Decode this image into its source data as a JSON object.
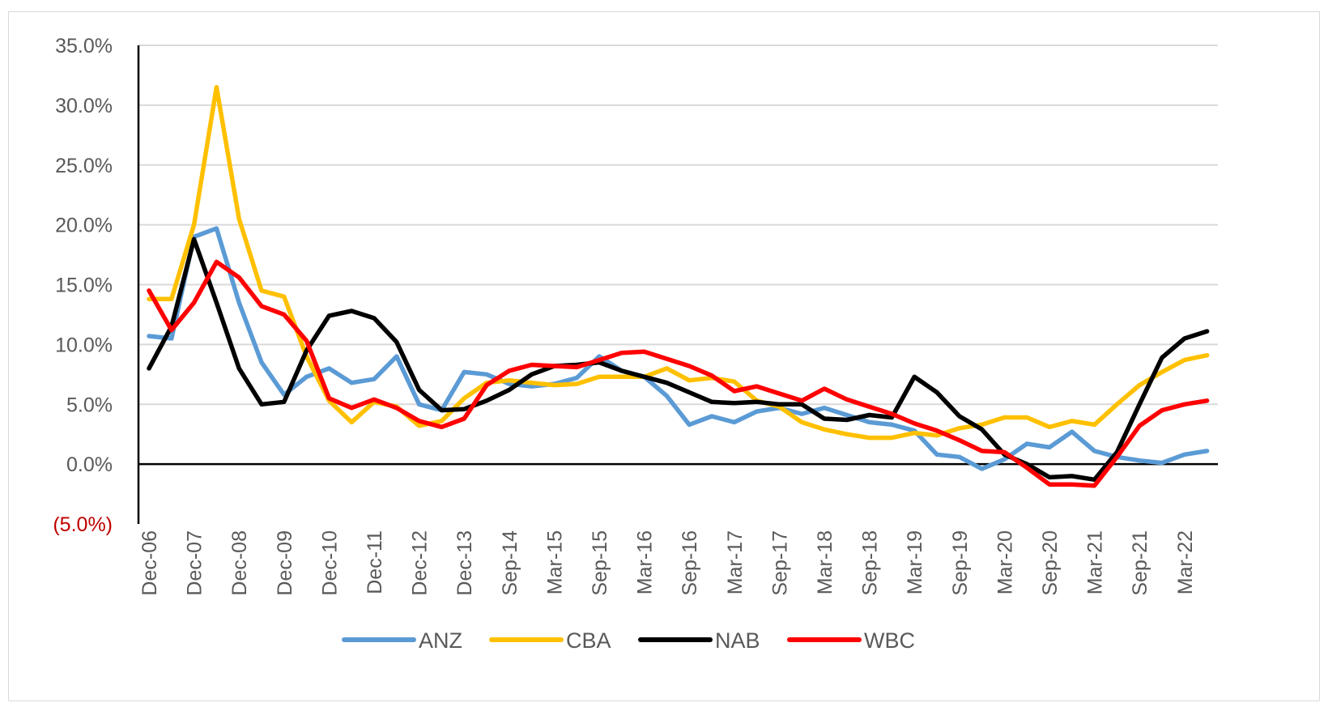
{
  "chart_data": {
    "type": "line",
    "title": "",
    "xlabel": "",
    "ylabel": "",
    "ylim": [
      -5,
      35
    ],
    "yticks": [
      35,
      30,
      25,
      20,
      15,
      10,
      5,
      0,
      -5
    ],
    "ytick_labels": [
      "35.0%",
      "30.0%",
      "25.0%",
      "20.0%",
      "15.0%",
      "10.0%",
      "5.0%",
      "0.0%",
      "(5.0%)"
    ],
    "grid": true,
    "legend_position": "bottom",
    "x": [
      "Dec-06",
      "Jun-07",
      "Dec-07",
      "Jun-08",
      "Dec-08",
      "Jun-09",
      "Dec-09",
      "Jun-10",
      "Dec-10",
      "Jun-11",
      "Dec-11",
      "Jun-12",
      "Dec-12",
      "Jun-13",
      "Dec-13",
      "Mar-14",
      "Sep-14",
      "Dec-14",
      "Mar-15",
      "Jun-15",
      "Sep-15",
      "Dec-15",
      "Mar-16",
      "Jun-16",
      "Sep-16",
      "Dec-16",
      "Mar-17",
      "Jun-17",
      "Sep-17",
      "Dec-17",
      "Mar-18",
      "Jun-18",
      "Sep-18",
      "Dec-18",
      "Mar-19",
      "Jun-19",
      "Sep-19",
      "Dec-19",
      "Mar-20",
      "Jun-20",
      "Sep-20",
      "Dec-20",
      "Mar-21",
      "Jun-21",
      "Sep-21",
      "Dec-21",
      "Mar-22",
      "Jun-22"
    ],
    "x_tick_labels": [
      "Dec-06",
      "Dec-07",
      "Dec-08",
      "Dec-09",
      "Dec-10",
      "Dec-11",
      "Dec-12",
      "Dec-13",
      "Sep-14",
      "Mar-15",
      "Sep-15",
      "Mar-16",
      "Sep-16",
      "Mar-17",
      "Sep-17",
      "Mar-18",
      "Sep-18",
      "Mar-19",
      "Sep-19",
      "Mar-20",
      "Sep-20",
      "Mar-21",
      "Sep-21",
      "Mar-22"
    ],
    "series": [
      {
        "name": "ANZ",
        "color": "#5b9bd5",
        "values": [
          10.7,
          10.5,
          19.0,
          19.7,
          13.5,
          8.5,
          5.8,
          7.3,
          8.0,
          6.8,
          7.1,
          9.0,
          5.0,
          4.5,
          7.7,
          7.5,
          6.7,
          6.5,
          6.7,
          7.2,
          9.0,
          7.8,
          7.3,
          5.7,
          3.3,
          4.0,
          3.5,
          4.4,
          4.7,
          4.2,
          4.7,
          4.1,
          3.5,
          3.3,
          2.8,
          0.8,
          0.6,
          -0.4,
          0.4,
          1.7,
          1.4,
          2.7,
          1.1,
          0.6,
          0.3,
          0.1,
          0.8,
          1.1
        ]
      },
      {
        "name": "CBA",
        "color": "#ffc000",
        "values": [
          13.8,
          13.8,
          20.0,
          31.5,
          20.5,
          14.5,
          14.0,
          9.0,
          5.3,
          3.5,
          5.2,
          4.8,
          3.2,
          3.6,
          5.5,
          6.8,
          7.0,
          6.8,
          6.6,
          6.7,
          7.3,
          7.3,
          7.3,
          8.0,
          7.0,
          7.2,
          6.9,
          5.3,
          4.8,
          3.5,
          2.9,
          2.5,
          2.2,
          2.2,
          2.6,
          2.4,
          3.0,
          3.3,
          3.9,
          3.9,
          3.1,
          3.6,
          3.3,
          5.0,
          6.6,
          7.7,
          8.7,
          9.1
        ]
      },
      {
        "name": "NAB",
        "color": "#000000",
        "values": [
          8.0,
          11.5,
          18.8,
          13.5,
          8.0,
          5.0,
          5.2,
          9.5,
          12.4,
          12.8,
          12.2,
          10.2,
          6.2,
          4.5,
          4.6,
          5.3,
          6.2,
          7.5,
          8.2,
          8.3,
          8.5,
          7.8,
          7.3,
          6.8,
          6.0,
          5.2,
          5.1,
          5.2,
          5.0,
          5.0,
          3.8,
          3.7,
          4.1,
          3.9,
          7.3,
          6.0,
          4.0,
          2.9,
          0.8,
          0.0,
          -1.1,
          -1.0,
          -1.3,
          1.0,
          5.0,
          8.9,
          10.5,
          11.1
        ]
      },
      {
        "name": "WBC",
        "color": "#ff0000",
        "values": [
          14.5,
          11.2,
          13.5,
          16.9,
          15.6,
          13.2,
          12.5,
          10.3,
          5.5,
          4.7,
          5.4,
          4.7,
          3.6,
          3.1,
          3.8,
          6.6,
          7.8,
          8.3,
          8.2,
          8.1,
          8.7,
          9.3,
          9.4,
          8.8,
          8.2,
          7.4,
          6.1,
          6.5,
          5.9,
          5.3,
          6.3,
          5.4,
          4.8,
          4.2,
          3.4,
          2.8,
          2.0,
          1.1,
          1.0,
          -0.3,
          -1.7,
          -1.7,
          -1.8,
          0.6,
          3.2,
          4.5,
          5.0,
          5.3
        ]
      }
    ]
  }
}
